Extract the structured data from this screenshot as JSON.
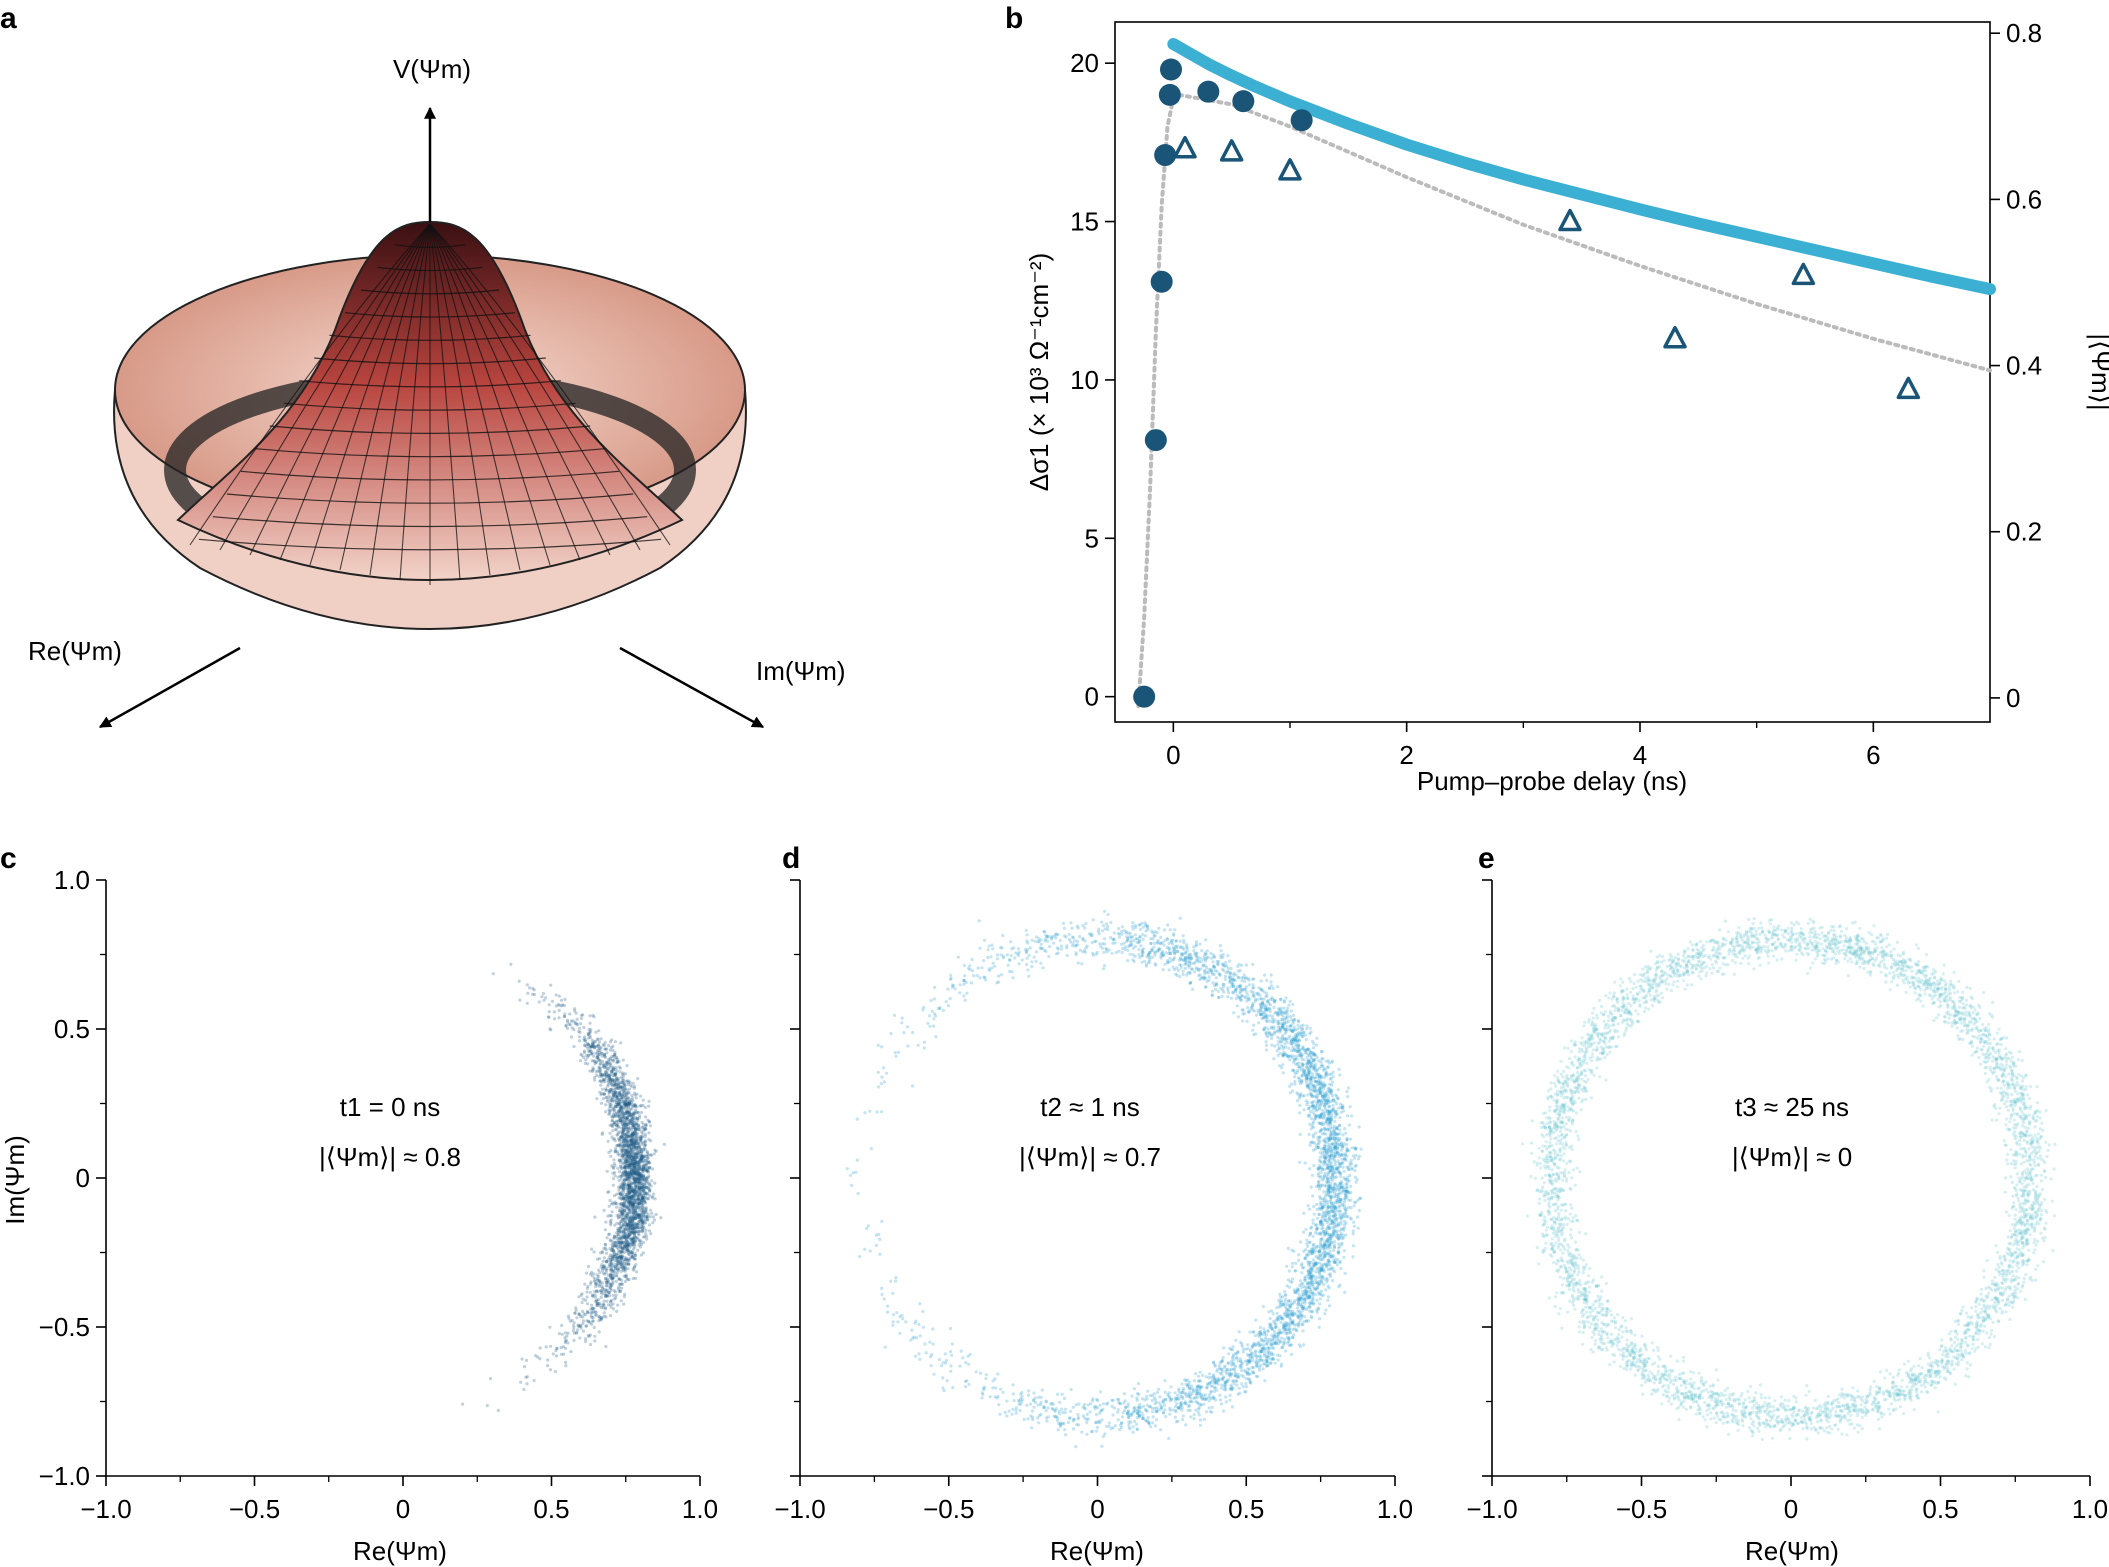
{
  "colors": {
    "dark_blue": "#1a5577",
    "light_blue": "#3cb0d3",
    "c_scatter": "#1b5b86",
    "d_scatter": "#2a9ecf",
    "e_scatter": "#6cc6d2",
    "fit_dotted": "#bbbbbb",
    "surface_top": "#3a0f12",
    "surface_mid": "#b8443e",
    "surface_low": "#f2d3c8"
  },
  "panels": {
    "a": {
      "label": "a",
      "z_axis": "V(Ψm)",
      "re_axis": "Re(Ψm)",
      "im_axis": "Im(Ψm)"
    },
    "b": {
      "label": "b",
      "xlabel": "Pump–probe delay (ns)",
      "ylabel_left": "Δσ1 (× 10³ Ω⁻¹cm⁻²)",
      "ylabel_right": "|⟨Ψm⟩|",
      "x_ticks": [
        "0",
        "2",
        "4",
        "6"
      ],
      "y_ticks_left": [
        "0",
        "5",
        "10",
        "15",
        "20"
      ],
      "y_ticks_right": [
        "0",
        "0.2",
        "0.4",
        "0.6",
        "0.8"
      ]
    },
    "c": {
      "label": "c",
      "annot_time": "t1 = 0 ns",
      "annot_mag": "|⟨Ψm⟩| ≈ 0.8",
      "xlabel": "Re(Ψm)",
      "ylabel": "Im(Ψm)",
      "x_ticks": [
        "−1.0",
        "−0.5",
        "0",
        "0.5",
        "1.0"
      ],
      "y_ticks": [
        "−1.0",
        "−0.5",
        "0",
        "0.5",
        "1.0"
      ]
    },
    "d": {
      "label": "d",
      "annot_time": "t2 ≈ 1 ns",
      "annot_mag": "|⟨Ψm⟩| ≈ 0.7",
      "xlabel": "Re(Ψm)",
      "x_ticks": [
        "−1.0",
        "−0.5",
        "0",
        "0.5",
        "1.0"
      ]
    },
    "e": {
      "label": "e",
      "annot_time": "t3 ≈ 25 ns",
      "annot_mag": "|⟨Ψm⟩| ≈ 0",
      "xlabel": "Re(Ψm)",
      "x_ticks": [
        "−1.0",
        "−0.5",
        "0",
        "0.5",
        "1.0"
      ]
    }
  },
  "chart_data": [
    {
      "panel": "b",
      "type": "scatter",
      "xlabel": "Pump–probe delay (ns)",
      "ylabel": "Δσ1 (× 10³ Ω⁻¹cm⁻²)",
      "ylabel_right": "|⟨Ψm⟩|",
      "xlim": [
        -0.5,
        7
      ],
      "ylim": [
        -0.8,
        21.3
      ],
      "ylim_right": [
        -0.029,
        0.8135
      ],
      "grid": false,
      "series": [
        {
          "marker": "circle",
          "axis": "left",
          "x": [
            -0.25,
            -0.15,
            -0.1,
            -0.07,
            -0.03,
            -0.02,
            0.3,
            0.6,
            1.1
          ],
          "y": [
            0,
            8.1,
            13.1,
            17.1,
            19.0,
            19.8,
            19.1,
            18.8,
            18.2
          ]
        },
        {
          "marker": "triangle-open",
          "axis": "left",
          "x": [
            0.1,
            0.5,
            1.0,
            3.4,
            4.3,
            5.4,
            6.3
          ],
          "y": [
            17.3,
            17.2,
            16.6,
            15.0,
            11.3,
            13.3,
            9.7
          ]
        },
        {
          "line": "dotted",
          "axis": "left",
          "x": [
            -0.3,
            -0.25,
            -0.2,
            -0.15,
            -0.1,
            -0.05,
            0,
            0.05,
            0.5,
            1,
            2,
            3,
            4,
            5,
            6,
            7
          ],
          "y": [
            -0.3,
            2.5,
            6.5,
            11.5,
            15.5,
            18.0,
            18.9,
            19.0,
            18.7,
            18.0,
            16.4,
            14.9,
            13.6,
            12.4,
            11.3,
            10.3
          ]
        },
        {
          "line": "solid",
          "axis": "right",
          "x": [
            0.0,
            0.05,
            0.1,
            0.2,
            0.3,
            0.5,
            0.7,
            1,
            1.5,
            2,
            2.5,
            3,
            3.5,
            4,
            4.5,
            5,
            5.5,
            6,
            6.5,
            7
          ],
          "y": [
            0.787,
            0.783,
            0.779,
            0.771,
            0.763,
            0.749,
            0.736,
            0.718,
            0.691,
            0.666,
            0.644,
            0.624,
            0.606,
            0.588,
            0.571,
            0.555,
            0.539,
            0.523,
            0.507,
            0.492
          ]
        }
      ]
    },
    {
      "panel": "c",
      "type": "scatter",
      "xlabel": "Re(Ψm)",
      "ylabel": "Im(Ψm)",
      "xlim": [
        -1,
        1
      ],
      "ylim": [
        -1,
        1
      ],
      "distribution": {
        "radius": 0.78,
        "radial_spread": 0.03,
        "angle_center_deg": 0,
        "angle_spread_deg": 20,
        "n_points": 2800
      }
    },
    {
      "panel": "d",
      "type": "scatter",
      "xlabel": "Re(Ψm)",
      "xlim": [
        -1,
        1
      ],
      "ylim": [
        -1,
        1
      ],
      "distribution": {
        "radius": 0.8,
        "radial_spread": 0.035,
        "angle_center_deg": 0,
        "angle_spread_deg": 60,
        "n_points": 3800
      }
    },
    {
      "panel": "e",
      "type": "scatter",
      "xlabel": "Re(Ψm)",
      "xlim": [
        -1,
        1
      ],
      "ylim": [
        -1,
        1
      ],
      "distribution": {
        "radius": 0.8,
        "radial_spread": 0.033,
        "angle_center_deg": 0,
        "angle_spread_deg": "uniform",
        "n_points": 4500
      }
    }
  ]
}
